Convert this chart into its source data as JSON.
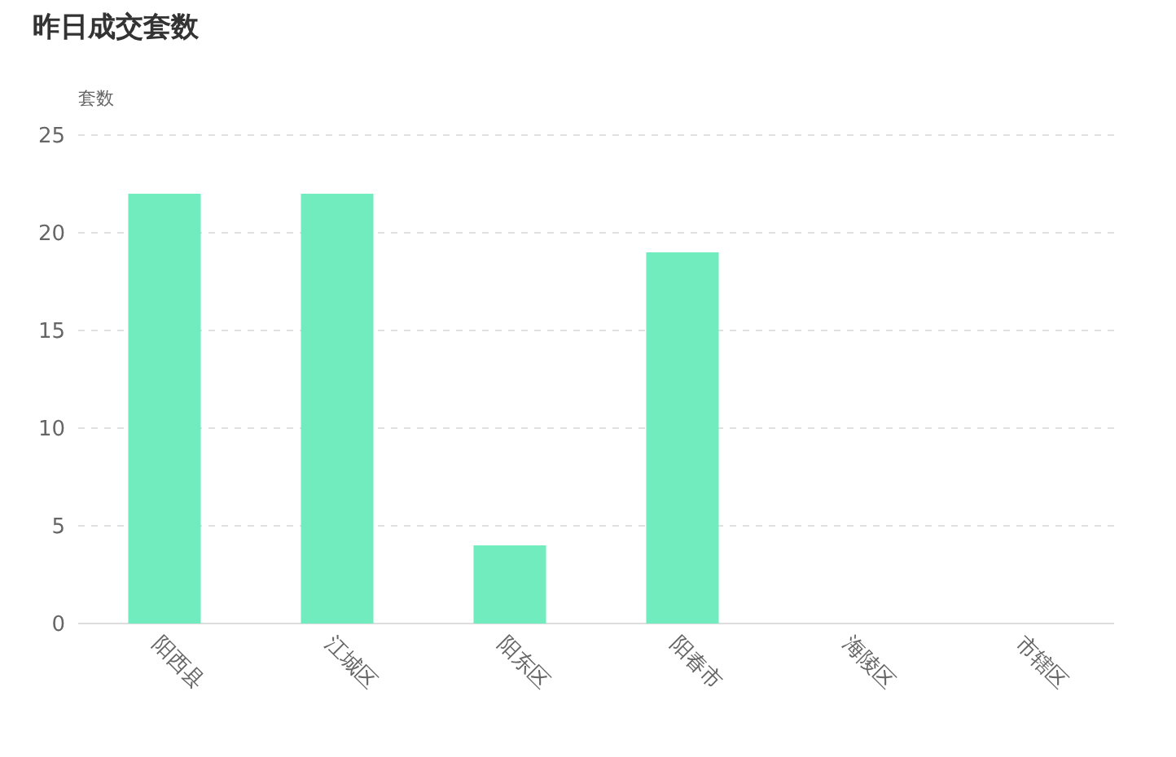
{
  "chart_data": {
    "type": "bar",
    "title": "昨日成交套数",
    "ylabel": "套数",
    "categories": [
      "阳西县",
      "江城区",
      "阳东区",
      "阳春市",
      "海陵区",
      "市辖区"
    ],
    "values": [
      22,
      22,
      4,
      19,
      0,
      0
    ],
    "color": "#70ecbe",
    "ylim": [
      0,
      25
    ],
    "yticks": [
      0,
      5,
      10,
      15,
      20,
      25
    ],
    "grid": "y"
  }
}
